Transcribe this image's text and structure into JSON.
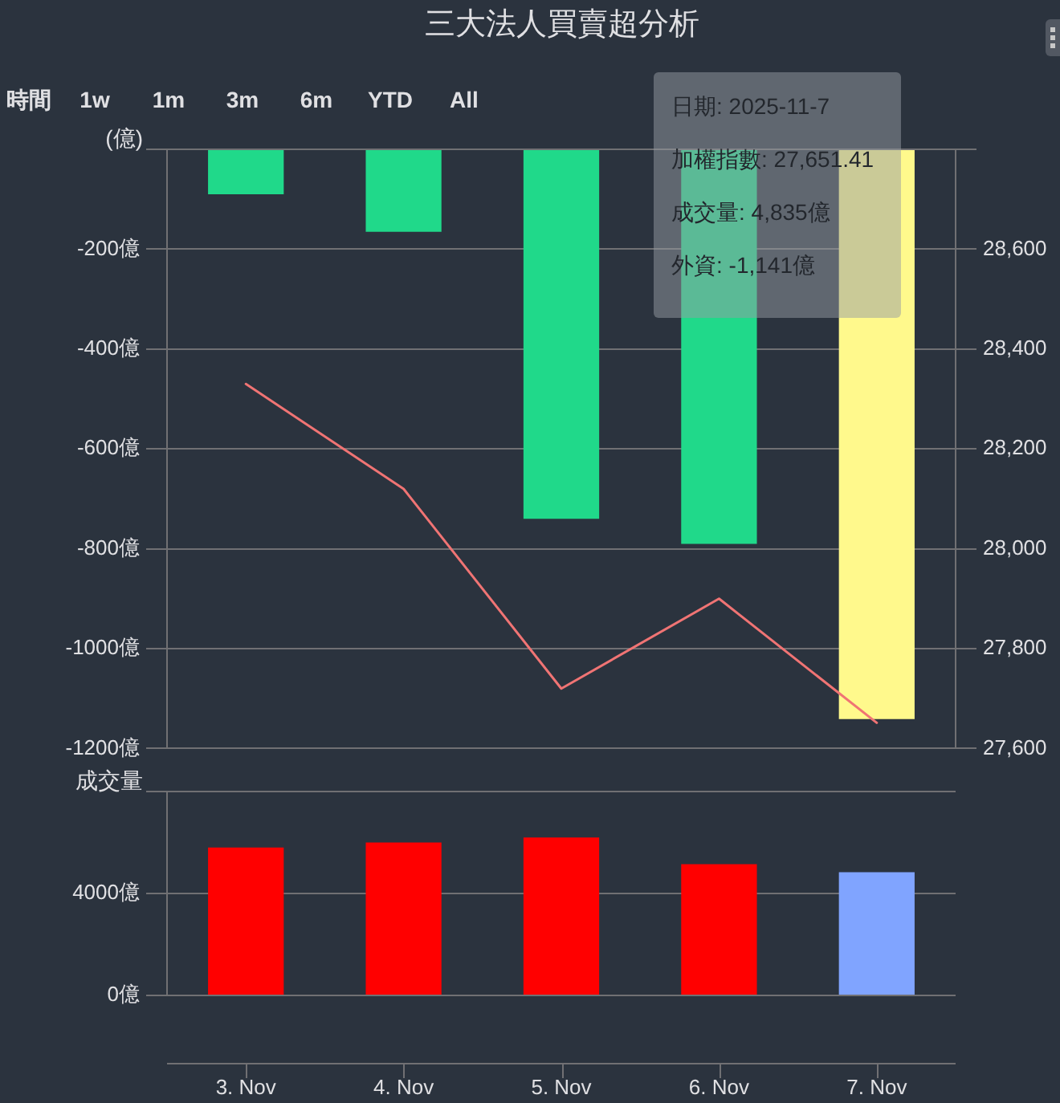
{
  "chart_data": [
    {
      "type": "other",
      "title": "三大法人買賣超分析",
      "annotations": [
        "時間",
        "1w",
        "1m",
        "3m",
        "6m",
        "YTD",
        "All"
      ]
    },
    {
      "type": "bar",
      "categories": [
        null,
        null,
        null,
        null,
        null
      ],
      "series": [
        {
          "type": "bar",
          "colors": [
            "#20d98a",
            "#20d98a",
            "#20d98a",
            "#20d98a",
            "#fff98c"
          ],
          "values": [
            -90,
            -165,
            -740,
            -790,
            -1141
          ]
        },
        {
          "type": "line",
          "axis": "y2",
          "color": "#f07474",
          "values": [
            28330,
            28120,
            27720,
            27900,
            27651.41
          ]
        }
      ],
      "ylabel": "(億)",
      "ylim": [
        -1200,
        0
      ],
      "yticks": [
        {
          "value": -1200,
          "label": "-1200億"
        },
        {
          "value": -1000,
          "label": "-1000億"
        },
        {
          "value": -800,
          "label": "-800億"
        },
        {
          "value": -600,
          "label": "-600億"
        },
        {
          "value": -400,
          "label": "-400億"
        },
        {
          "value": -200,
          "label": "-200億"
        },
        {
          "value": 0,
          "label": null
        }
      ],
      "y2lim": [
        27600,
        28800
      ],
      "y2ticks": [
        {
          "value": 27600,
          "label": "27,600"
        },
        {
          "value": 27800,
          "label": "27,800"
        },
        {
          "value": 28000,
          "label": "28,000"
        },
        {
          "value": 28200,
          "label": "28,200"
        },
        {
          "value": 28400,
          "label": "28,400"
        },
        {
          "value": 28600,
          "label": "28,600"
        },
        {
          "value": 28800,
          "label": null
        }
      ],
      "grid": "y",
      "tick_labels": "y",
      "annotations": [
        "日期: 2025-11-7",
        "加權指數: 27,651.41",
        "成交量: 4,835億",
        "外資: -1,141億"
      ]
    },
    {
      "type": "bar",
      "categories": [
        "3. Nov",
        "4. Nov",
        "5. Nov",
        "6. Nov",
        "7. Nov"
      ],
      "values": [
        5800,
        6000,
        6200,
        5150,
        4835
      ],
      "colors": [
        "#ff0000",
        "#ff0000",
        "#ff0000",
        "#ff0000",
        "#80a4ff"
      ],
      "ylabel": "成交量",
      "ylim": [
        0,
        8000
      ],
      "yticks": [
        {
          "value": 0,
          "label": "0億"
        },
        {
          "value": 4000,
          "label": "4000億"
        },
        {
          "value": 8000,
          "label": null
        }
      ],
      "grid": "y"
    }
  ]
}
